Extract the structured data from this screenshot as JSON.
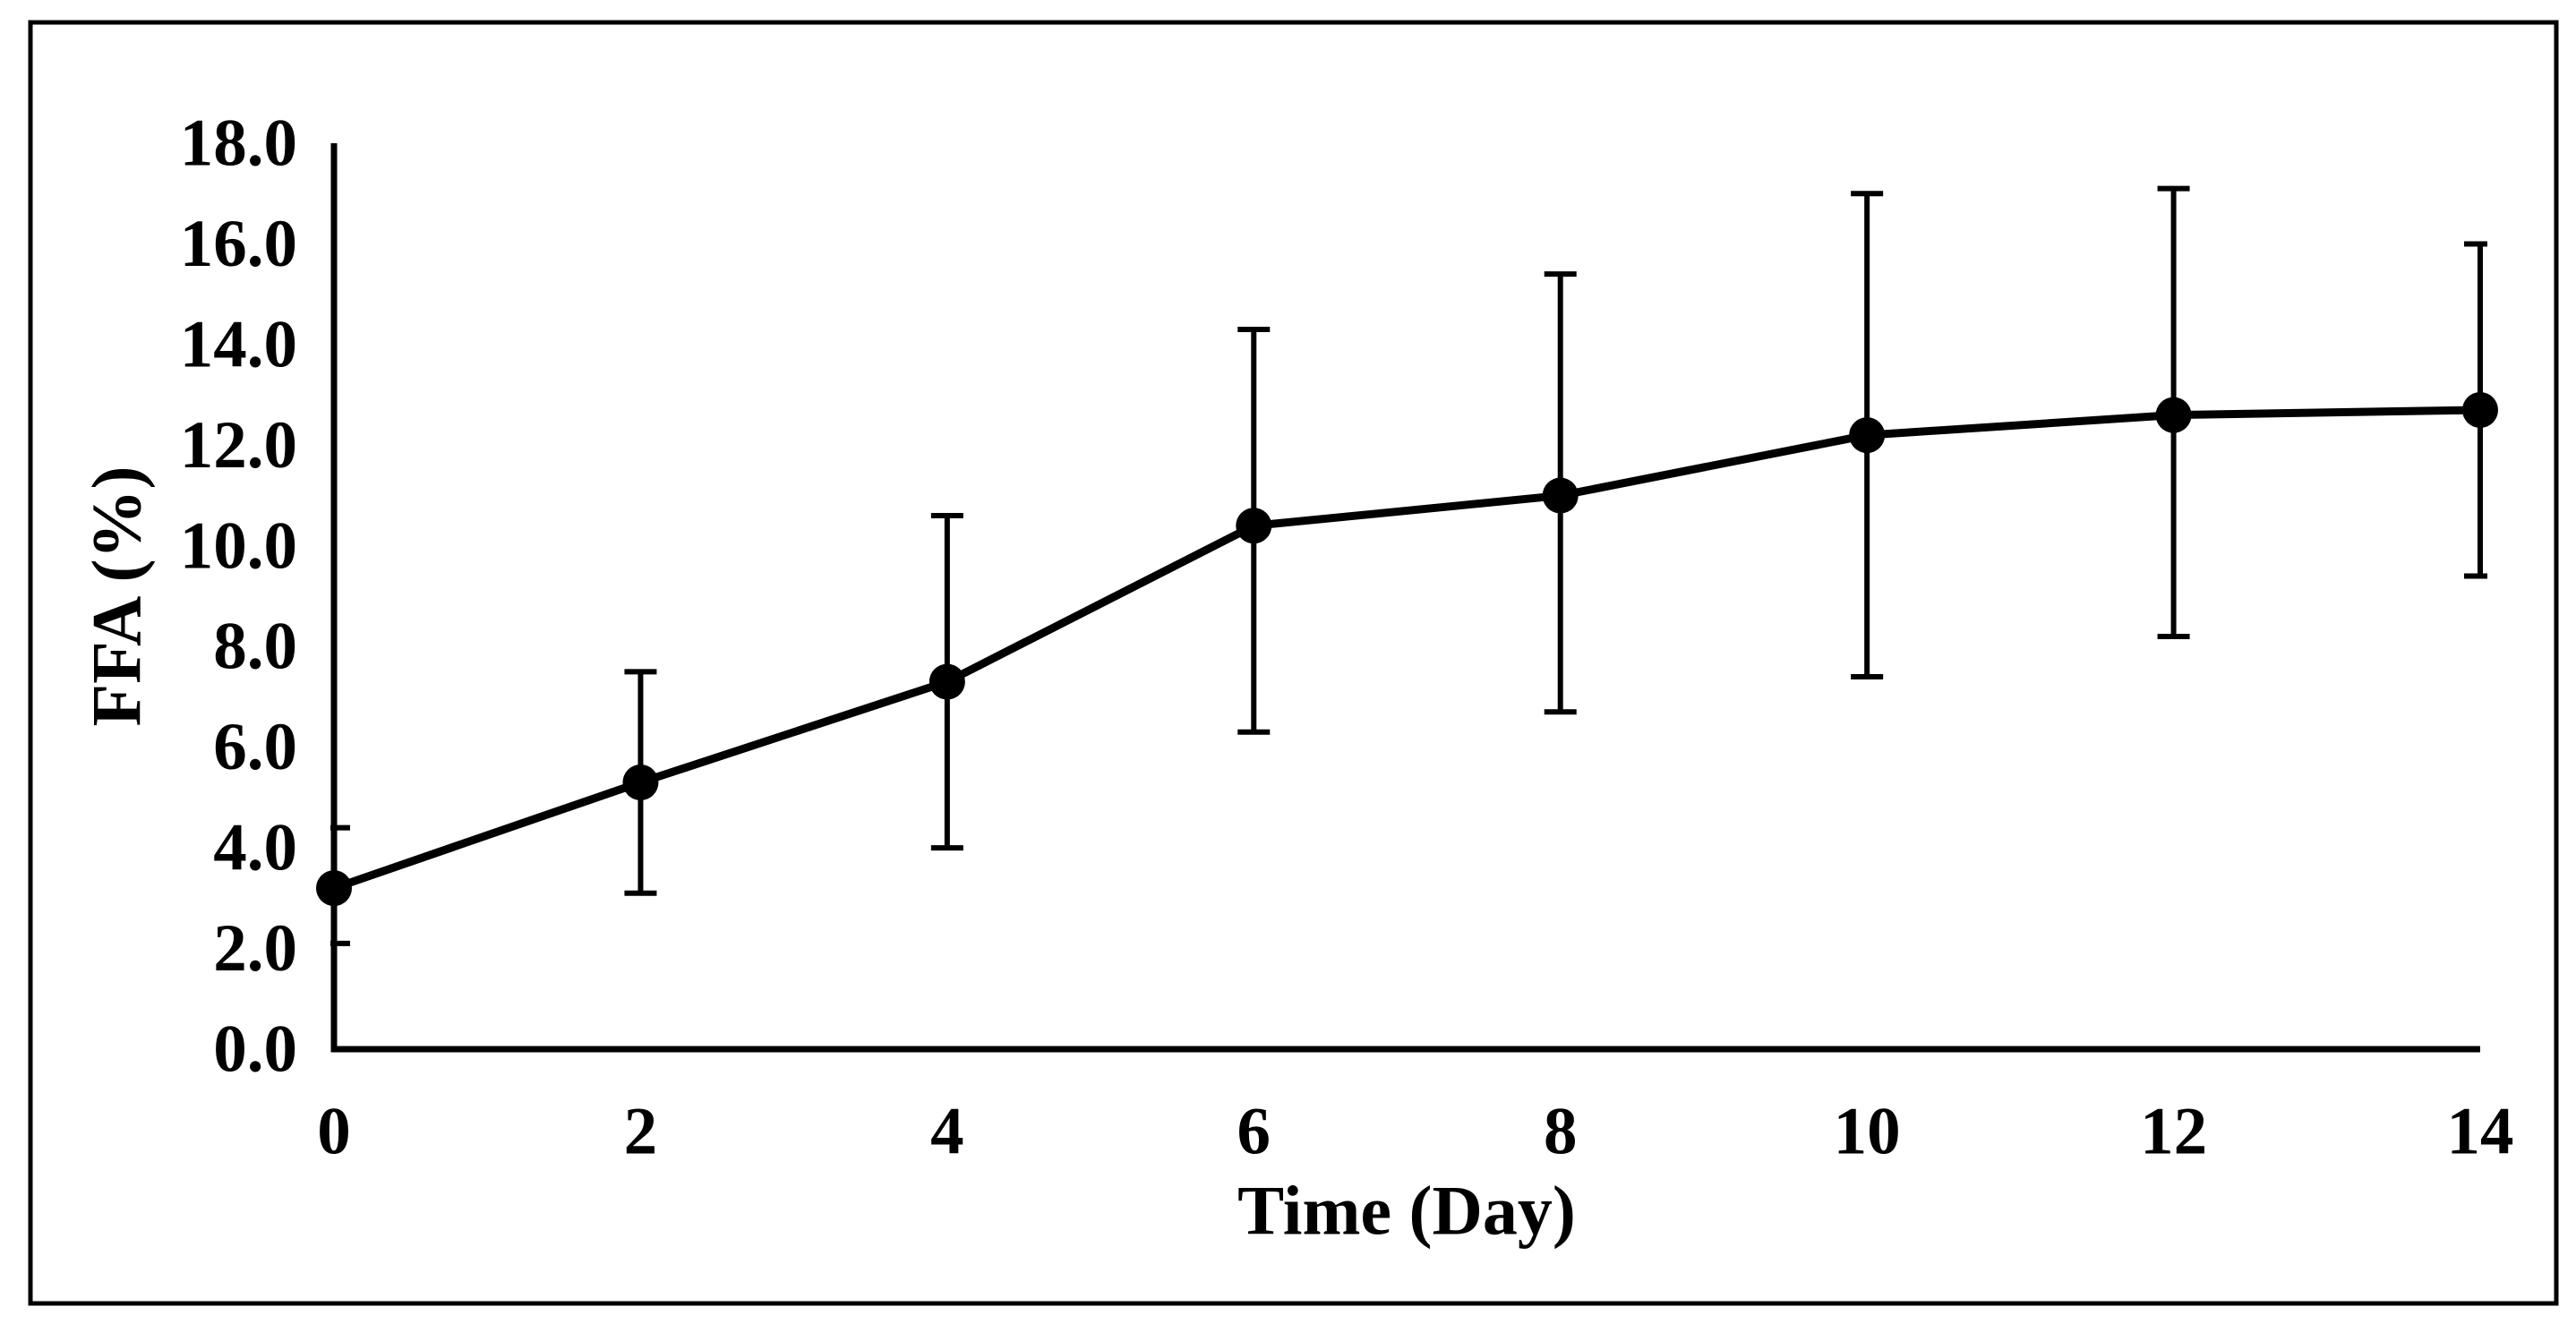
{
  "figure": {
    "background": "#ffffff",
    "border_color": "#000000",
    "ink_color": "#000000"
  },
  "chart_data": {
    "type": "line",
    "title": "",
    "xlabel": "Time (Day)",
    "ylabel": "FFA (%)",
    "xlim": [
      0,
      14
    ],
    "ylim": [
      0.0,
      18.0
    ],
    "grid": false,
    "legend": "none",
    "x_ticks": [
      {
        "v": 0,
        "label": "0"
      },
      {
        "v": 2,
        "label": "2"
      },
      {
        "v": 4,
        "label": "4"
      },
      {
        "v": 6,
        "label": "6"
      },
      {
        "v": 8,
        "label": "8"
      },
      {
        "v": 10,
        "label": "10"
      },
      {
        "v": 12,
        "label": "12"
      },
      {
        "v": 14,
        "label": "14"
      }
    ],
    "y_ticks": [
      {
        "v": 0,
        "label": "0.0"
      },
      {
        "v": 2,
        "label": "2.0"
      },
      {
        "v": 4,
        "label": "4.0"
      },
      {
        "v": 6,
        "label": "6.0"
      },
      {
        "v": 8,
        "label": "8.0"
      },
      {
        "v": 10,
        "label": "10.0"
      },
      {
        "v": 12,
        "label": "12.0"
      },
      {
        "v": 14,
        "label": "14.0"
      },
      {
        "v": 16,
        "label": "16.0"
      },
      {
        "v": 18,
        "label": "18.0"
      }
    ],
    "series": [
      {
        "name": "FFA (%)",
        "color": "#000000",
        "marker": "filled-circle",
        "x": [
          0,
          2,
          4,
          6,
          8,
          10,
          12,
          14
        ],
        "y": [
          3.2,
          5.3,
          7.3,
          10.4,
          11.0,
          12.2,
          12.6,
          12.7
        ],
        "error_bars": {
          "lower": [
            2.1,
            3.1,
            4.0,
            6.3,
            6.7,
            7.4,
            8.2,
            9.4
          ],
          "upper": [
            4.4,
            7.5,
            10.6,
            14.3,
            15.4,
            17.0,
            17.1,
            16.0
          ]
        }
      }
    ]
  }
}
